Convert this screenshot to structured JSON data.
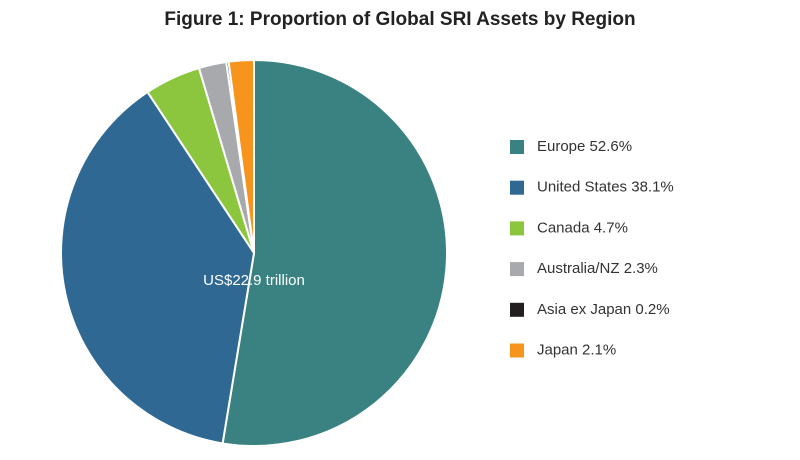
{
  "chart_data": {
    "type": "pie",
    "title": "Figure 1: Proportion of Global SRI Assets by Region",
    "annotation": "US$22.9 trillion",
    "categories": [
      "Europe",
      "United States",
      "Canada",
      "Australia/NZ",
      "Asia ex Japan",
      "Japan"
    ],
    "values": [
      52.6,
      38.1,
      4.7,
      2.3,
      0.2,
      2.1
    ],
    "value_labels": [
      "52.6%",
      "38.1%",
      "4.7%",
      "2.3%",
      "0.2%",
      "2.1%"
    ],
    "colors": [
      "#3a8282",
      "#2e6893",
      "#8cc63f",
      "#a7a9ac",
      "#231f20",
      "#f7941d"
    ]
  }
}
